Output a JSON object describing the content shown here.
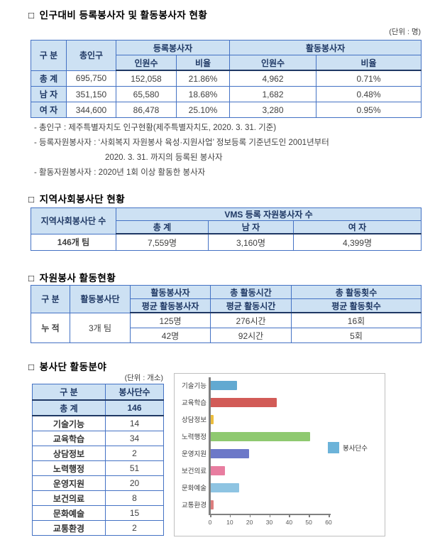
{
  "colors": {
    "table_border": "#4472C4",
    "table_border_dark": "#1F3864",
    "header_fill": "#CDE1F3",
    "header_text": "#1F3864",
    "body_text": "#404040"
  },
  "section1": {
    "bullet": "□",
    "title": "인구대비 등록봉사자 및 활동봉사자 현황",
    "unit": "(단위 : 명)",
    "table": {
      "col_group": "구 분",
      "col_total_pop": "총인구",
      "group_registered": "등록봉사자",
      "group_active": "활동봉사자",
      "sub_count": "인원수",
      "sub_ratio": "비율",
      "rows": [
        {
          "label": "총 계",
          "pop": "695,750",
          "reg_count": "152,058",
          "reg_ratio": "21.86%",
          "act_count": "4,962",
          "act_ratio": "0.71%"
        },
        {
          "label": "남 자",
          "pop": "351,150",
          "reg_count": "65,580",
          "reg_ratio": "18.68%",
          "act_count": "1,682",
          "act_ratio": "0.48%"
        },
        {
          "label": "여 자",
          "pop": "344,600",
          "reg_count": "86,478",
          "reg_ratio": "25.10%",
          "act_count": "3,280",
          "act_ratio": "0.95%"
        }
      ]
    },
    "notes": [
      {
        "text": "- 총인구 : 제주특별자치도 인구현황(제주특별자치도, 2020. 3. 31. 기준)"
      },
      {
        "text": "- 등록자원봉사자 : ‘사회복지 자원봉사 육성·지원사업’ 정보등록 기준년도인 2001년부터"
      },
      {
        "text": "2020. 3. 31. 까지의 등록된 봉사자"
      },
      {
        "text": "- 활동자원봉사자 : 2020년 1회 이상 활동한 봉사자"
      }
    ]
  },
  "section2": {
    "bullet": "□",
    "title": "지역사회봉사단 현황",
    "table": {
      "col_team_count": "지역사회봉사단 수",
      "group_header": "VMS 등록 자원봉사자 수",
      "sub_total": "총 계",
      "sub_male": "남 자",
      "sub_female": "여 자",
      "row": {
        "team_count": "146개 팀",
        "total": "7,559명",
        "male": "3,160명",
        "female": "4,399명"
      }
    }
  },
  "section3": {
    "bullet": "□",
    "title": "자원봉사 활동현황",
    "table": {
      "col_group": "구 분",
      "col_team": "활동봉사단",
      "group1_top": "활동봉사자",
      "group1_bottom": "평균 활동봉사자",
      "group2_top": "총 활동시간",
      "group2_bottom": "평균 활동시간",
      "group3_top": "총 활동횟수",
      "group3_bottom": "평균 활동횟수",
      "row_label": "누 적",
      "team": "3개 팀",
      "data_rows": [
        {
          "volunteers": "125명",
          "hours": "276시간",
          "times": "16회"
        },
        {
          "volunteers": "42명",
          "hours": "92시간",
          "times": "5회"
        }
      ]
    }
  },
  "section4": {
    "bullet": "□",
    "title": "봉사단 활동분야",
    "unit": "(단위 : 개소)",
    "table": {
      "col_group": "구    분",
      "col_count": "봉사단수",
      "total_label": "총    계",
      "total_value": "146",
      "rows": [
        {
          "label": "기술기능",
          "value": "14"
        },
        {
          "label": "교육학습",
          "value": "34"
        },
        {
          "label": "상담정보",
          "value": "2"
        },
        {
          "label": "노력행정",
          "value": "51"
        },
        {
          "label": "운영지원",
          "value": "20"
        },
        {
          "label": "보건의료",
          "value": "8"
        },
        {
          "label": "문화예술",
          "value": "15"
        },
        {
          "label": "교통환경",
          "value": "2"
        }
      ]
    }
  },
  "chart_data": {
    "type": "bar",
    "orientation": "horizontal",
    "categories": [
      "기술기능",
      "교육학습",
      "상담정보",
      "노력행정",
      "운영지원",
      "보건의료",
      "문화예술",
      "교통환경"
    ],
    "values": [
      14,
      34,
      2,
      51,
      20,
      8,
      15,
      2
    ],
    "colors": [
      "#62A9D1",
      "#D25B57",
      "#EDBE3E",
      "#8FC970",
      "#6C78C8",
      "#E87DA0",
      "#8EC4E2",
      "#DD7E7E"
    ],
    "legend": "봉사단수",
    "legend_color": "#6CB3D9",
    "legend_position": "right",
    "title": "",
    "xlabel": "",
    "ylabel": "",
    "xlim": [
      0,
      60
    ],
    "xticks": [
      0,
      10,
      20,
      30,
      40,
      50,
      60
    ],
    "grid": false
  }
}
